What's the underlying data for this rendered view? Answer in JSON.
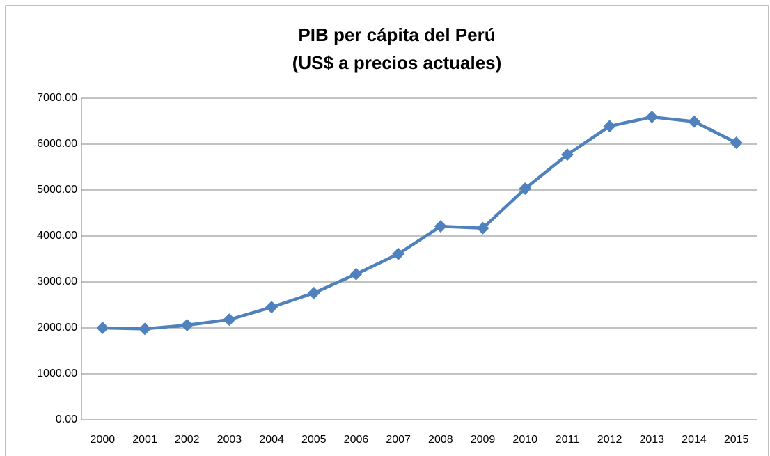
{
  "chart_data": {
    "type": "line",
    "title": "PIB per cápita del Perú",
    "subtitle": "(US$ a precios actuales)",
    "categories": [
      "2000",
      "2001",
      "2002",
      "2003",
      "2004",
      "2005",
      "2006",
      "2007",
      "2008",
      "2009",
      "2010",
      "2011",
      "2012",
      "2013",
      "2014",
      "2015"
    ],
    "series": [
      {
        "color": "#4f81bd",
        "values": [
          2000,
          1980,
          2060,
          2180,
          2450,
          2760,
          3170,
          3610,
          4210,
          4170,
          5030,
          5770,
          6390,
          6590,
          6490,
          6030
        ]
      }
    ],
    "ylim": [
      0,
      7000
    ],
    "yticks": [
      {
        "value": 0,
        "label": "0.00"
      },
      {
        "value": 1000,
        "label": "1000.00"
      },
      {
        "value": 2000,
        "label": "2000.00"
      },
      {
        "value": 3000,
        "label": "3000.00"
      },
      {
        "value": 4000,
        "label": "4000.00"
      },
      {
        "value": 5000,
        "label": "5000.00"
      },
      {
        "value": 6000,
        "label": "6000.00"
      },
      {
        "value": 7000,
        "label": "7000.00"
      }
    ],
    "grid": true
  }
}
